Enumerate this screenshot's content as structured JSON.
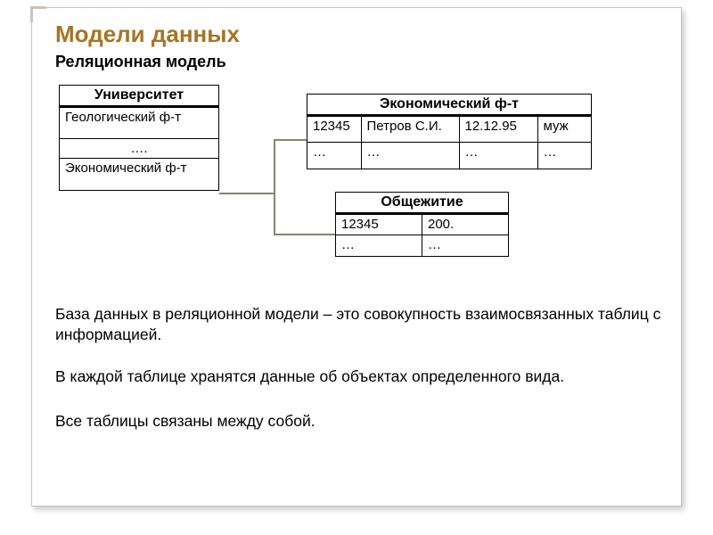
{
  "colors": {
    "title": "#a67524",
    "connector": "#7a8a6a",
    "border": "#000000"
  },
  "slide": {
    "title": "Модели данных",
    "subtitle": "Реляционная модель"
  },
  "tables": {
    "t1": {
      "header": "Университет",
      "rows": [
        [
          "Геологический ф-т"
        ],
        [
          "…."
        ],
        [
          "Экономический ф-т"
        ]
      ]
    },
    "t2": {
      "header": "Экономический ф-т",
      "rows": [
        [
          "12345",
          "Петров С.И.",
          "12.12.95",
          "муж"
        ],
        [
          "…",
          "…",
          "…",
          "…"
        ]
      ],
      "col_widths": [
        "55px",
        "100px",
        "80px",
        "55px"
      ]
    },
    "t3": {
      "header": "Общежитие",
      "rows": [
        [
          "12345",
          "200."
        ],
        [
          "…",
          "…"
        ]
      ],
      "col_widths": [
        "85px",
        "85px"
      ]
    }
  },
  "connectors": {
    "stroke_width": 2,
    "paths": [
      "M 184 122 L 246 122 L 246 62 L 282 62",
      "M 246 122 L 246 168 L 314 168"
    ]
  },
  "paragraphs": {
    "p1": "База данных в реляционной модели – это совокупность взаимосвязанных таблиц с информацией.",
    "p2": "В каждой таблице хранятся данные об  объектах определенного вида.",
    "p3": "Все таблицы связаны между собой."
  }
}
